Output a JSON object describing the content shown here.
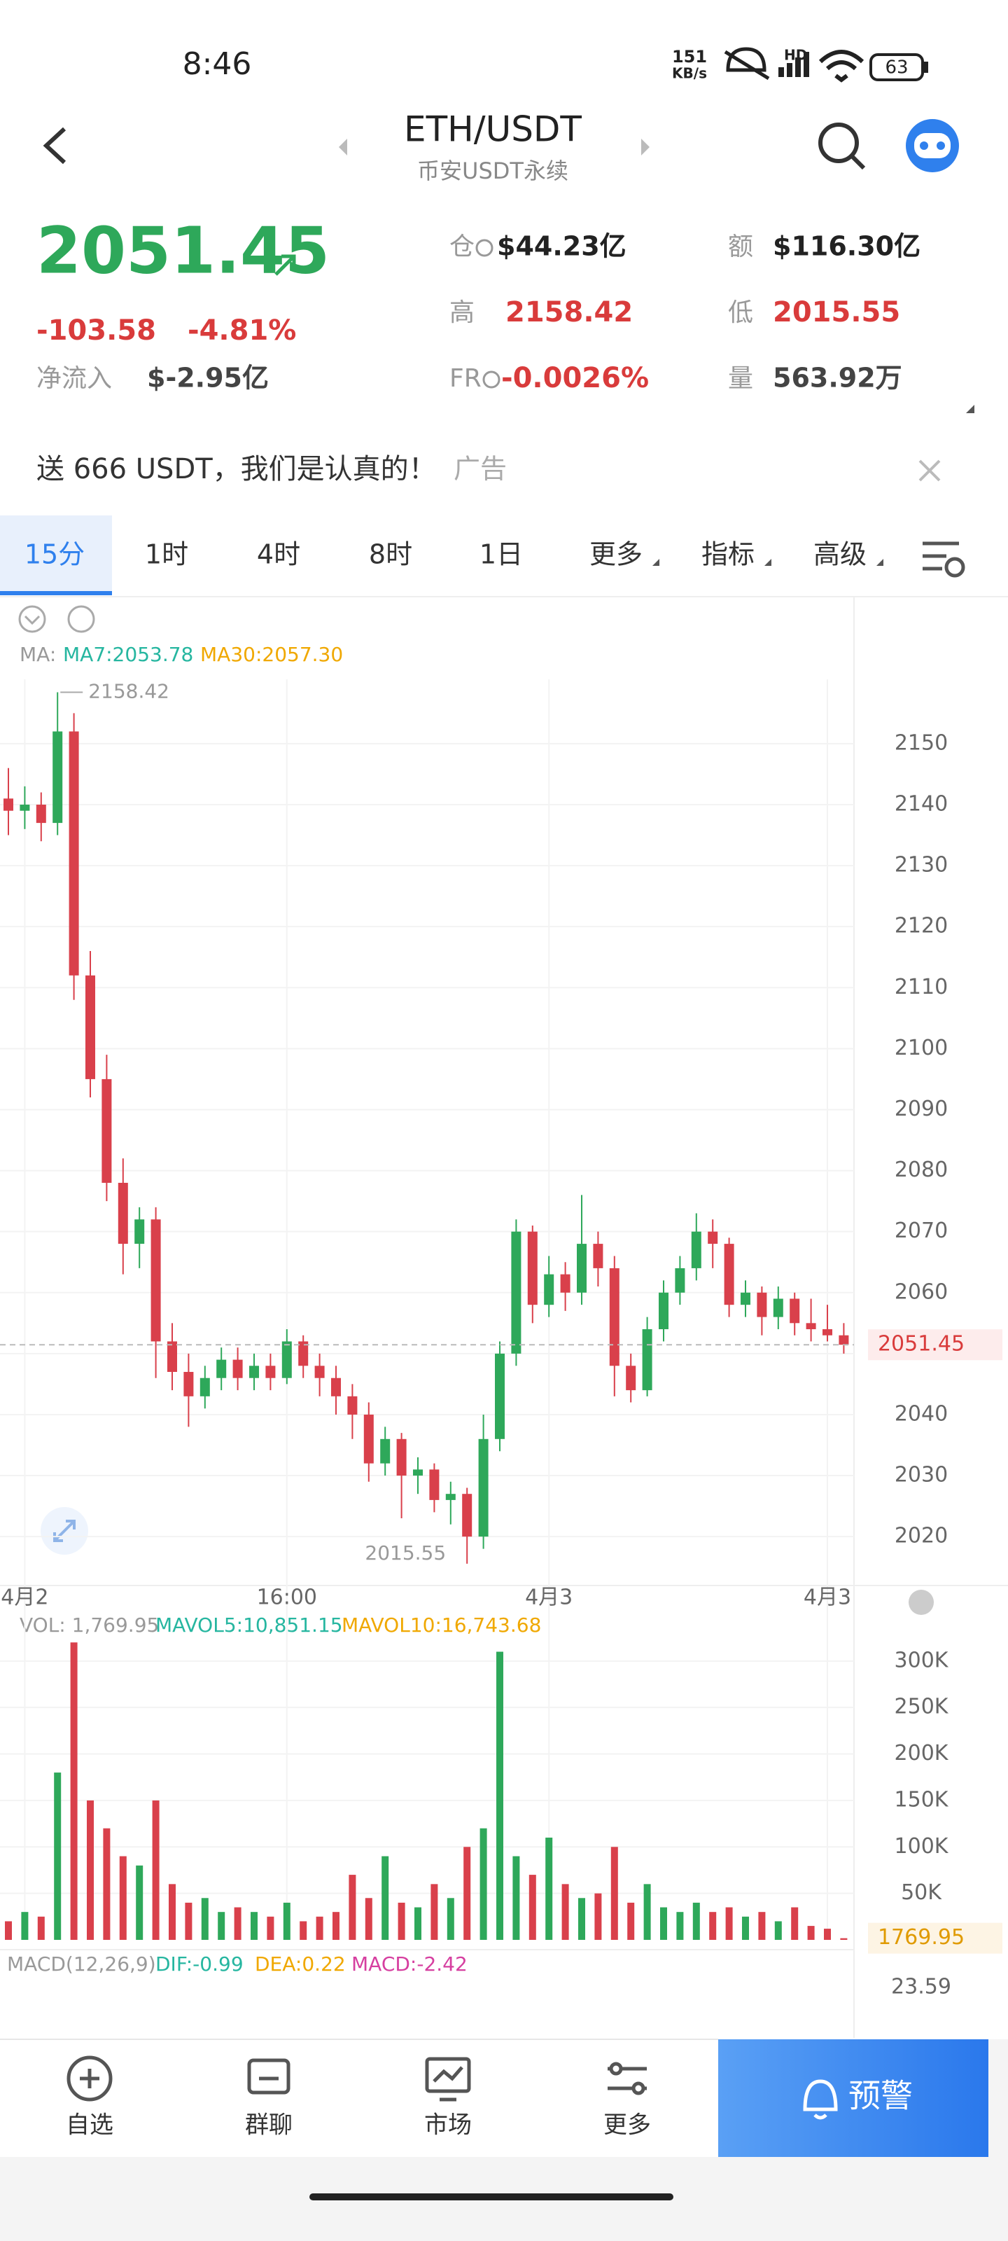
{
  "status_bar": {
    "time": "8:46",
    "speed": "151",
    "speed_unit": "KB/s",
    "hd": "HD",
    "battery": "63"
  },
  "header": {
    "pair": "ETH/USDT",
    "market": "币安USDT永续"
  },
  "ticker": {
    "price": "2051.45",
    "change": "-103.58",
    "change_pct": "-4.81%",
    "net_inflow_label": "净流入",
    "net_inflow": "$-2.95亿",
    "stats": [
      {
        "label": "仓",
        "value": "$44.23亿"
      },
      {
        "label": "额",
        "value": "$116.30亿"
      },
      {
        "label": "高",
        "value": "2158.42"
      },
      {
        "label": "低",
        "value": "2015.55"
      },
      {
        "label": "FR",
        "value": "-0.0026%"
      },
      {
        "label": "量",
        "value": "563.92万"
      }
    ]
  },
  "banner": {
    "text": "送 666 USDT，我们是认真的！",
    "tag": "广告"
  },
  "tabs": [
    "15分",
    "1时",
    "4时",
    "8时",
    "1日",
    "更多",
    "指标",
    "高级"
  ],
  "indicators": {
    "ma_label": "MA:",
    "ma7": "MA7:2053.78",
    "ma30": "MA30:2057.30",
    "vol": "VOL: 1,769.95",
    "mavol5": "MAVOL5:10,851.15",
    "mavol10": "MAVOL10:16,743.68",
    "macd_label": "MACD(12,26,9)",
    "dif": "DIF:-0.99",
    "dea": "DEA:0.22",
    "macd": "MACD:-2.42",
    "macd_top": "23.59"
  },
  "chart_data": {
    "type": "candlestick",
    "up_color": "#2ea85a",
    "down_color": "#d9404b",
    "categories": [
      null,
      "4月2",
      null,
      null,
      null,
      null,
      null,
      null,
      null,
      null,
      null,
      null,
      null,
      null,
      null,
      null,
      null,
      "16:00",
      null,
      null,
      null,
      null,
      null,
      null,
      null,
      null,
      null,
      null,
      null,
      null,
      null,
      null,
      null,
      "4月3",
      null,
      null,
      null,
      null,
      null,
      null,
      null,
      null,
      null,
      null,
      null,
      null,
      null,
      null,
      null,
      null,
      "4月3",
      null
    ],
    "open": [
      2141,
      2139,
      2140,
      2137,
      2152,
      2112,
      2095,
      2078,
      2068,
      2072,
      2052,
      2047,
      2043,
      2046,
      2049,
      2046,
      2048,
      2046,
      2052,
      2048,
      2046,
      2043,
      2040,
      2032,
      2036,
      2030,
      2031,
      2026,
      2027,
      2020,
      2036,
      2050,
      2070,
      2058,
      2063,
      2060,
      2068,
      2064,
      2048,
      2044,
      2054,
      2060,
      2064,
      2070,
      2068,
      2058,
      2060,
      2056,
      2059,
      2055,
      2054,
      2053
    ],
    "high": [
      2146,
      2143,
      2142,
      2158.42,
      2155,
      2116,
      2099,
      2082,
      2074,
      2074,
      2055,
      2050,
      2048,
      2051,
      2051,
      2050,
      2050,
      2054,
      2053,
      2050,
      2048,
      2045,
      2042,
      2038,
      2037,
      2033,
      2032,
      2029,
      2028,
      2040,
      2052,
      2072,
      2071,
      2066,
      2065,
      2076,
      2070,
      2066,
      2050,
      2056,
      2062,
      2066,
      2073,
      2072,
      2069,
      2062,
      2061,
      2061,
      2060,
      2059,
      2058,
      2055
    ],
    "low": [
      2135,
      2136,
      2134,
      2135,
      2108,
      2092,
      2075,
      2063,
      2064,
      2046,
      2044,
      2038,
      2041,
      2044,
      2044,
      2044,
      2044,
      2045,
      2046,
      2043,
      2040,
      2036,
      2029,
      2030,
      2023,
      2027,
      2024,
      2022,
      2015.55,
      2018,
      2034,
      2048,
      2055,
      2056,
      2057,
      2058,
      2061,
      2043,
      2042,
      2043,
      2052,
      2058,
      2062,
      2064,
      2056,
      2056,
      2053,
      2054,
      2053,
      2052,
      2052,
      2050
    ],
    "close": [
      2139,
      2140,
      2137,
      2152,
      2112,
      2095,
      2078,
      2068,
      2072,
      2052,
      2047,
      2043,
      2046,
      2049,
      2046,
      2048,
      2046,
      2052,
      2048,
      2046,
      2043,
      2040,
      2032,
      2036,
      2030,
      2031,
      2026,
      2027,
      2020,
      2036,
      2050,
      2070,
      2058,
      2063,
      2060,
      2068,
      2064,
      2048,
      2044,
      2054,
      2060,
      2064,
      2070,
      2068,
      2058,
      2060,
      2056,
      2059,
      2055,
      2054,
      2053,
      2051.45
    ],
    "ylim": [
      2012.9,
      2159.4
    ],
    "yticks": [
      2020,
      2030,
      2040,
      2050,
      2060,
      2070,
      2080,
      2090,
      2100,
      2110,
      2120,
      2130,
      2140,
      2150
    ],
    "current_price": 2051.45,
    "volume": [
      20000,
      30000,
      25000,
      180000,
      320000,
      150000,
      120000,
      90000,
      80000,
      150000,
      60000,
      40000,
      45000,
      30000,
      35000,
      30000,
      25000,
      40000,
      20000,
      25000,
      30000,
      70000,
      45000,
      90000,
      40000,
      35000,
      60000,
      45000,
      100000,
      120000,
      310000,
      90000,
      70000,
      110000,
      60000,
      45000,
      50000,
      100000,
      40000,
      60000,
      35000,
      30000,
      40000,
      30000,
      35000,
      25000,
      30000,
      20000,
      35000,
      15000,
      12000,
      1769.95
    ],
    "volume_ylim": [
      0,
      330000
    ],
    "volume_yticks": [
      {
        "value": 50000,
        "label": "50K"
      },
      {
        "value": 100000,
        "label": "100K"
      },
      {
        "value": 150000,
        "label": "150K"
      },
      {
        "value": 200000,
        "label": "200K"
      },
      {
        "value": 250000,
        "label": "250K"
      },
      {
        "value": 300000,
        "label": "300K"
      }
    ],
    "current_volume": 1769.95
  },
  "bottom_nav": [
    "自选",
    "群聊",
    "市场",
    "更多"
  ],
  "alert_button": "预警"
}
